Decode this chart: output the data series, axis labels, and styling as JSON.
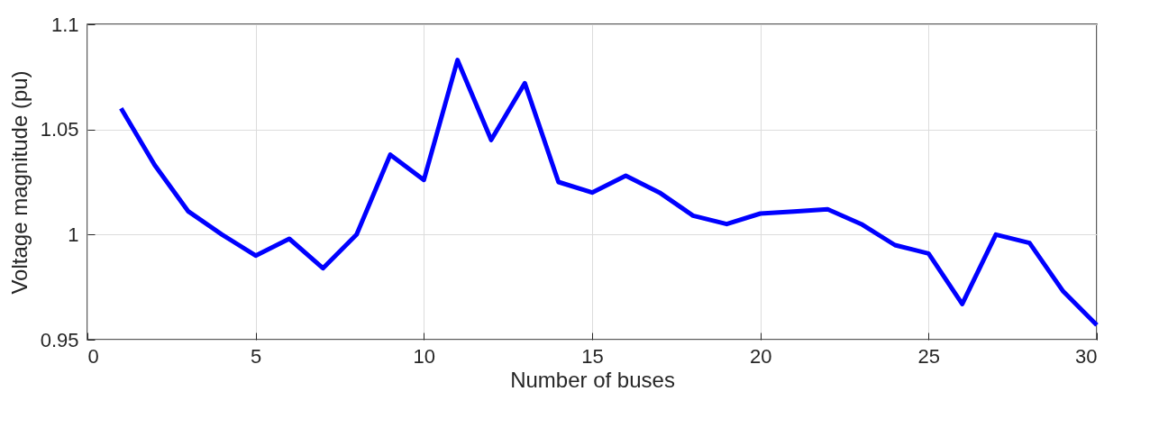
{
  "chart_data": {
    "type": "line",
    "xlabel": "Number of buses",
    "ylabel": "Voltage magnitude (pu)",
    "x": [
      1,
      2,
      3,
      4,
      5,
      6,
      7,
      8,
      9,
      10,
      11,
      12,
      13,
      14,
      15,
      16,
      17,
      18,
      19,
      20,
      21,
      22,
      23,
      24,
      25,
      26,
      27,
      28,
      29,
      30
    ],
    "series": [
      {
        "color": "#0000ff",
        "values": [
          1.06,
          1.033,
          1.011,
          1.0,
          0.99,
          0.998,
          0.984,
          1.0,
          1.038,
          1.026,
          1.083,
          1.045,
          1.072,
          1.025,
          1.02,
          1.028,
          1.02,
          1.009,
          1.005,
          1.01,
          1.011,
          1.012,
          1.005,
          0.995,
          0.991,
          0.967,
          1.0,
          0.996,
          0.973,
          0.957
        ]
      }
    ],
    "xlim": [
      0,
      30
    ],
    "xticks": [
      0,
      5,
      10,
      15,
      20,
      25,
      30
    ],
    "ylim": [
      0.95,
      1.1
    ],
    "yticks": [
      {
        "value": 0.95,
        "label": "0.95"
      },
      {
        "value": 1,
        "label": "1"
      },
      {
        "value": 1.05,
        "label": "1.05"
      },
      {
        "value": 1.1,
        "label": "1.1"
      }
    ],
    "grid": true,
    "legend": false,
    "marker": "none",
    "line_style": "solid"
  }
}
